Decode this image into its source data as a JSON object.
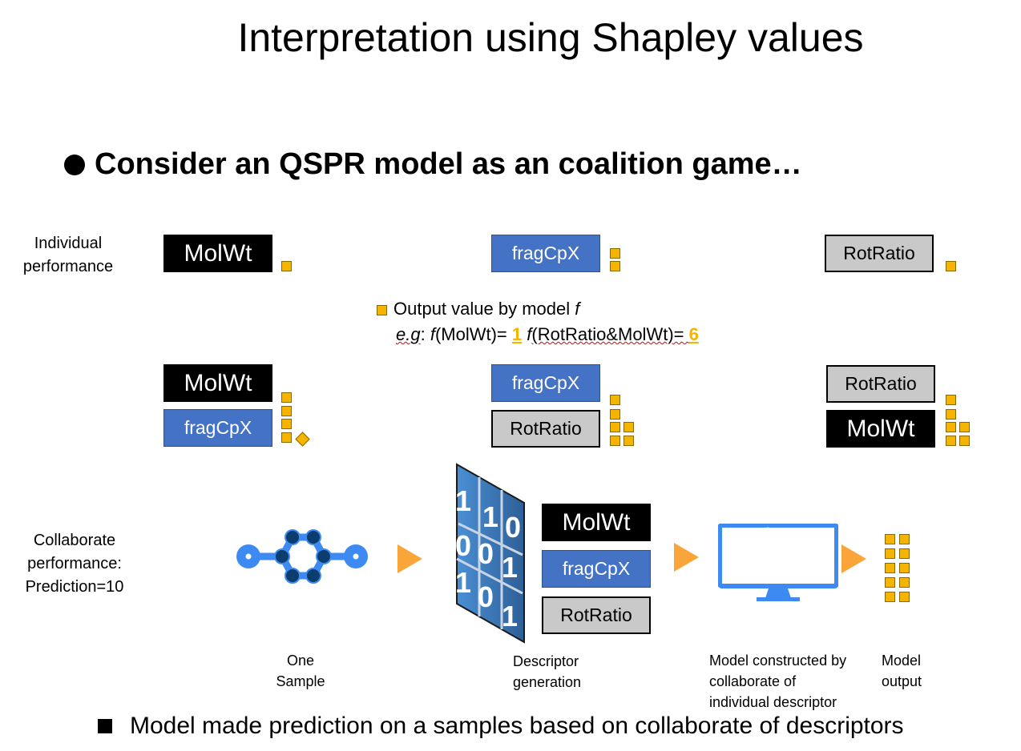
{
  "title": "Interpretation using Shapley values",
  "bullet": "Consider an QSPR model as an coalition game…",
  "individual_label": [
    "Individual",
    "performance"
  ],
  "collaborate_label": [
    "Collaborate",
    "performance:",
    "Prediction=10"
  ],
  "descriptors": {
    "molwt": "MolWt",
    "fragcpx": "fragCpX",
    "rotratio": "RotRatio"
  },
  "legend": {
    "line1": "Output value by model ",
    "f": "f",
    "eg": "e.g",
    "colon": ": ",
    "expr1": "(MolWt)= ",
    "val1": "1",
    "expr2": "(RotRatio&MolWt)= ",
    "val2": "6"
  },
  "matrix_digits": [
    "1",
    "1",
    "0",
    "0",
    "0",
    "1",
    "1",
    "0",
    "1"
  ],
  "captions": {
    "sample": [
      "One",
      "Sample"
    ],
    "descriptor": [
      "Descriptor",
      "generation"
    ],
    "model": [
      "Model constructed by",
      "collaborate of",
      "individual descriptor"
    ],
    "output": [
      "Model",
      "output"
    ]
  },
  "footer": "Model made  prediction on a samples based on collaborate of descriptors",
  "colors": {
    "accent_orange": "#f9a53a",
    "score_square": "#f5b400",
    "descriptor_blue": "#4472c4",
    "monitor_blue": "#3d8bf2"
  }
}
